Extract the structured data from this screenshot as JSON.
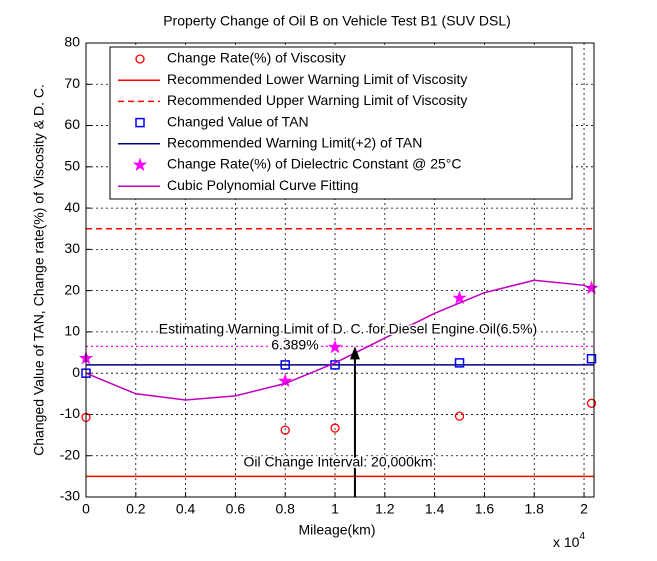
{
  "chart_data": {
    "type": "line",
    "title": "Property Change of Oil B on Vehicle Test B1 (SUV DSL)",
    "xlabel": "Mileage(km)",
    "ylabel": "Changed Value of TAN, Change rate(%) of Viscosity & D. C.",
    "x_multiplier": {
      "base": "x 10",
      "exponent": "4"
    },
    "xlim": [
      0,
      2.04
    ],
    "ylim": [
      -30,
      80
    ],
    "xticks": [
      0,
      0.2,
      0.4,
      0.6,
      0.8,
      1,
      1.2,
      1.4,
      1.6,
      1.8,
      2
    ],
    "yticks": [
      -30,
      -20,
      -10,
      0,
      10,
      20,
      30,
      40,
      50,
      60,
      70,
      80
    ],
    "grid": true,
    "series": [
      {
        "name": "Change Rate(%) of Viscosity",
        "color": "#ff0000",
        "marker": "circle",
        "linestyle": "none",
        "x": [
          0,
          0.8,
          1,
          1.5,
          2.03
        ],
        "values": [
          -10.7,
          -13.8,
          -13.3,
          -10.4,
          -7.3
        ]
      },
      {
        "name": "Recommended Lower Warning Limit of Viscosity",
        "color": "#ff0000",
        "marker": "none",
        "linestyle": "solid",
        "x": [
          0,
          2.04
        ],
        "values": [
          -25,
          -25
        ]
      },
      {
        "name": "Recommended Upper Warning Limit of Viscosity",
        "color": "#ff0000",
        "marker": "none",
        "linestyle": "dashed",
        "x": [
          0,
          2.04
        ],
        "values": [
          35,
          35
        ]
      },
      {
        "name": "Changed Value of TAN",
        "color": "#0000ff",
        "marker": "square",
        "linestyle": "none",
        "x": [
          0,
          0.8,
          1,
          1.5,
          2.03
        ],
        "values": [
          0,
          2,
          2,
          2.5,
          3.5
        ]
      },
      {
        "name": "Recommended Warning Limit(+2) of TAN",
        "color": "#000080",
        "marker": "none",
        "linestyle": "solid",
        "x": [
          0,
          2.04
        ],
        "values": [
          2,
          2
        ]
      },
      {
        "name": "Change Rate(%) of Dielectric Constant @ 25°C",
        "color": "#ff00ff",
        "marker": "star",
        "linestyle": "none",
        "x": [
          0,
          0.8,
          1,
          1.5,
          2.03
        ],
        "values": [
          3.6,
          -1.9,
          6.3,
          18.2,
          20.6
        ]
      },
      {
        "name": "Cubic Polynomial Curve Fitting",
        "color": "#c000c0",
        "marker": "none",
        "linestyle": "solid",
        "x": [
          0,
          0.2,
          0.4,
          0.6,
          0.8,
          1,
          1.2,
          1.4,
          1.6,
          1.8,
          2,
          2.03
        ],
        "values": [
          0,
          -5,
          -6.5,
          -5.5,
          -2.5,
          2.5,
          8.5,
          14.5,
          19.5,
          22.5,
          21.3,
          20.5
        ]
      }
    ],
    "reference_line": {
      "value": 6.5,
      "color": "#ff00ff",
      "linestyle": "dotted"
    },
    "arrow": {
      "x": 1.08,
      "y": 6.5
    },
    "annotations": [
      "Estimating Warning Limit of D. C. for Diesel Engine Oil(6.5%)",
      "6.389%",
      "Oil Change Interval: 20,000km"
    ]
  }
}
